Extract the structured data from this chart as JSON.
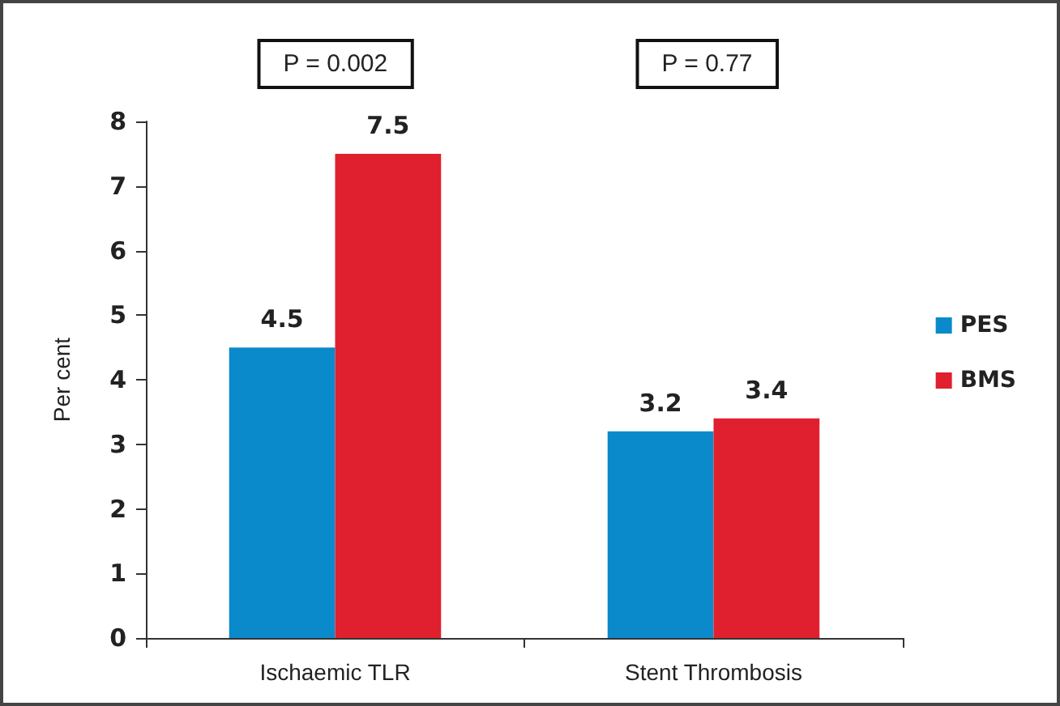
{
  "chart_data": {
    "type": "bar",
    "ylabel": "Per cent",
    "categories": [
      "Ischaemic TLR",
      "Stent Thrombosis"
    ],
    "series": [
      {
        "name": "PES",
        "color": "#0b8acb",
        "values": [
          4.5,
          3.2
        ]
      },
      {
        "name": "BMS",
        "color": "#e0202e",
        "values": [
          7.5,
          3.4
        ]
      }
    ],
    "ylim": [
      0,
      8
    ],
    "yticks": [
      0,
      1,
      2,
      3,
      4,
      5,
      6,
      7,
      8
    ],
    "grid": false,
    "legend": "right",
    "data_labels": true,
    "annotations": [
      "P = 0.002",
      "P = 0.77"
    ]
  }
}
